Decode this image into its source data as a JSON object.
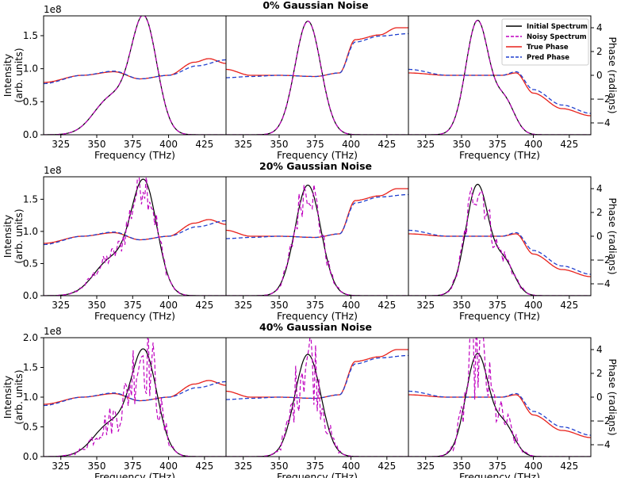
{
  "chart_data": {
    "type": "line",
    "xlabel": "Frequency (THz)",
    "ylabel_left": "Intensity\n(arb. units)",
    "ylabel_right": "Phase (radians)",
    "xlim": [
      313,
      440
    ],
    "x_ticks": [
      325,
      350,
      375,
      400,
      425
    ],
    "phase_lim": [
      -5,
      5
    ],
    "phase_ticks": [
      -4,
      -2,
      0,
      2,
      4
    ],
    "legend": {
      "position": "top-right",
      "entries": [
        "Initial Spectrum",
        "Noisy Spectrum",
        "True Phase",
        "Pred Phase"
      ]
    },
    "colors": {
      "initial": "#000000",
      "noisy": "#bf00bf",
      "true_phase": "#e8201a",
      "pred_phase": "#1f3fcf"
    },
    "rows": [
      {
        "title": "0% Gaussian Noise",
        "multiplier": "1e8",
        "intensity_lim": [
          0,
          1.8
        ],
        "intensity_ticks": [
          "0.0",
          "0.5",
          "1.0",
          "1.5"
        ],
        "intensity_tick_values": [
          0,
          0.5,
          1.0,
          1.5
        ],
        "noise": 0
      },
      {
        "title": "20% Gaussian Noise",
        "multiplier": "1e8",
        "intensity_lim": [
          0,
          1.85
        ],
        "intensity_ticks": [
          "0.0",
          "0.5",
          "1.0",
          "1.5"
        ],
        "intensity_tick_values": [
          0,
          0.5,
          1.0,
          1.5
        ],
        "noise": 0.2
      },
      {
        "title": "40% Gaussian Noise",
        "multiplier": "1e8",
        "intensity_lim": [
          0,
          2.0
        ],
        "intensity_ticks": [
          "0.0",
          "0.5",
          "1.0",
          "1.5",
          "2.0"
        ],
        "intensity_tick_values": [
          0,
          0.5,
          1.0,
          1.5,
          2.0
        ],
        "noise": 0.4
      }
    ],
    "panels": [
      {
        "name": "left",
        "spectrum": {
          "peak": 1.72,
          "center": 383,
          "sigma": 9,
          "shoulder": 0.55,
          "shoulder_center": 360,
          "shoulder_sigma": 12
        },
        "true_phase": [
          [
            313,
            -0.6
          ],
          [
            340,
            0
          ],
          [
            362,
            0.3
          ],
          [
            380,
            -0.3
          ],
          [
            400,
            0
          ],
          [
            418,
            1.1
          ],
          [
            428,
            1.4
          ],
          [
            440,
            1.0
          ]
        ],
        "pred_phase": [
          [
            313,
            -0.7
          ],
          [
            340,
            0
          ],
          [
            362,
            0.35
          ],
          [
            380,
            -0.3
          ],
          [
            400,
            0
          ],
          [
            420,
            0.8
          ],
          [
            440,
            1.3
          ]
        ]
      },
      {
        "name": "middle",
        "spectrum": {
          "peak": 1.72,
          "center": 370,
          "sigma": 9,
          "shoulder": 0,
          "shoulder_center": 370,
          "shoulder_sigma": 10
        },
        "true_phase": [
          [
            313,
            0.5
          ],
          [
            330,
            0
          ],
          [
            350,
            0
          ],
          [
            375,
            -0.1
          ],
          [
            392,
            0.2
          ],
          [
            403,
            3.0
          ],
          [
            420,
            3.4
          ],
          [
            432,
            4.0
          ],
          [
            440,
            4.0
          ]
        ],
        "pred_phase": [
          [
            313,
            -0.2
          ],
          [
            330,
            -0.1
          ],
          [
            350,
            0
          ],
          [
            375,
            -0.1
          ],
          [
            392,
            0.2
          ],
          [
            403,
            2.8
          ],
          [
            420,
            3.3
          ],
          [
            440,
            3.5
          ]
        ]
      },
      {
        "name": "right",
        "spectrum": {
          "peak": 1.72,
          "center": 361,
          "sigma": 8,
          "shoulder": 0.5,
          "shoulder_center": 380,
          "shoulder_sigma": 7
        },
        "true_phase": [
          [
            313,
            0.2
          ],
          [
            340,
            0
          ],
          [
            360,
            0
          ],
          [
            378,
            0
          ],
          [
            388,
            0.2
          ],
          [
            400,
            -1.5
          ],
          [
            420,
            -2.8
          ],
          [
            440,
            -3.4
          ]
        ],
        "pred_phase": [
          [
            313,
            0.5
          ],
          [
            340,
            0
          ],
          [
            360,
            0
          ],
          [
            378,
            0
          ],
          [
            388,
            0.3
          ],
          [
            400,
            -1.2
          ],
          [
            420,
            -2.5
          ],
          [
            440,
            -3.2
          ]
        ]
      }
    ]
  }
}
